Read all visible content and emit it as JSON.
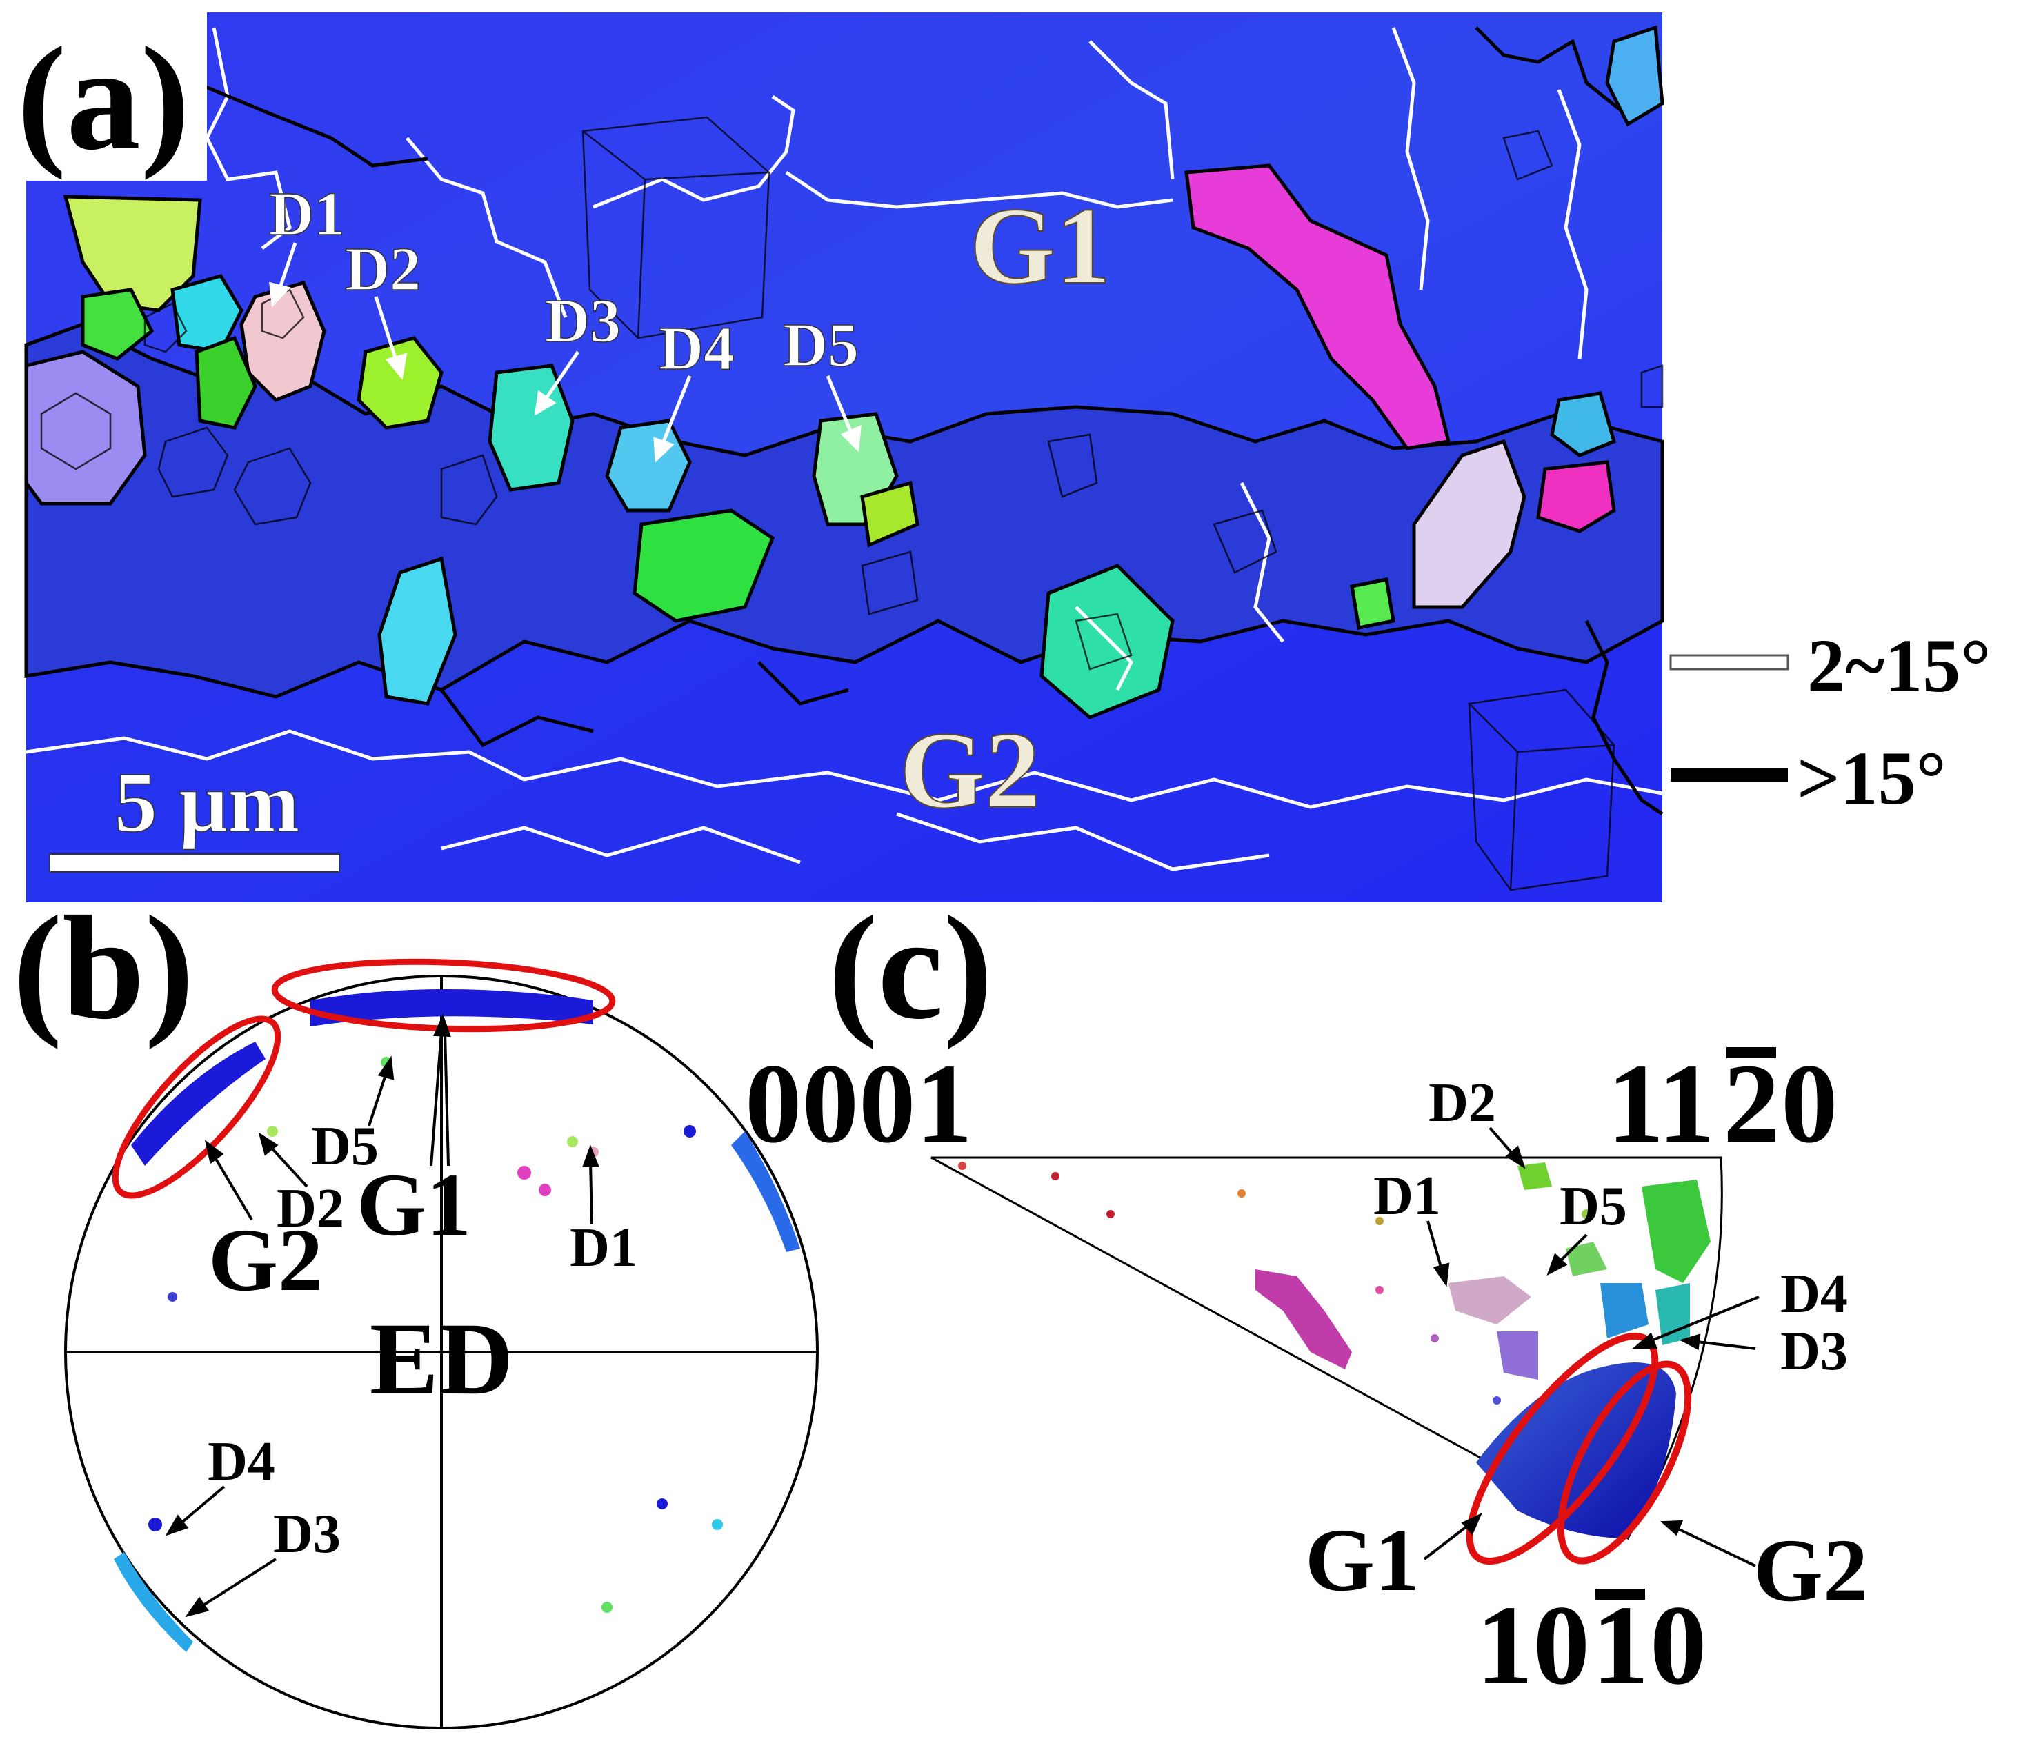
{
  "panel_a": {
    "letter": "(a)",
    "grains": [
      "G1",
      "G2"
    ],
    "dgrains": [
      "D1",
      "D2",
      "D3",
      "D4",
      "D5"
    ],
    "scale_bar": "5 μm",
    "legend": [
      {
        "label": "2~15°",
        "color": "#ffffff"
      },
      {
        "label": ">15°",
        "color": "#000000"
      }
    ],
    "colors": {
      "matrix_blue": "#2a33f0",
      "dark_blue": "#1a1ad8",
      "magenta": "#e83cd8",
      "green": "#44e040",
      "cyan": "#30d8e8",
      "pink": "#f2c8d0",
      "lime": "#c8f060"
    }
  },
  "panel_b": {
    "letter": "(b)",
    "center": "ED",
    "labels": [
      "G1",
      "G2",
      "D1",
      "D2",
      "D3",
      "D4",
      "D5"
    ],
    "highlight_color": "#e01010"
  },
  "panel_c": {
    "letter": "(c)",
    "corners": {
      "top_left": "0001",
      "top_right": "11",
      "top_right_bar": "2",
      "top_right_tail": "0",
      "bottom": "10",
      "bottom_bar": "1",
      "bottom_tail": "0"
    },
    "labels": [
      "D1",
      "D2",
      "D3",
      "D4",
      "D5",
      "G1",
      "G2"
    ]
  }
}
